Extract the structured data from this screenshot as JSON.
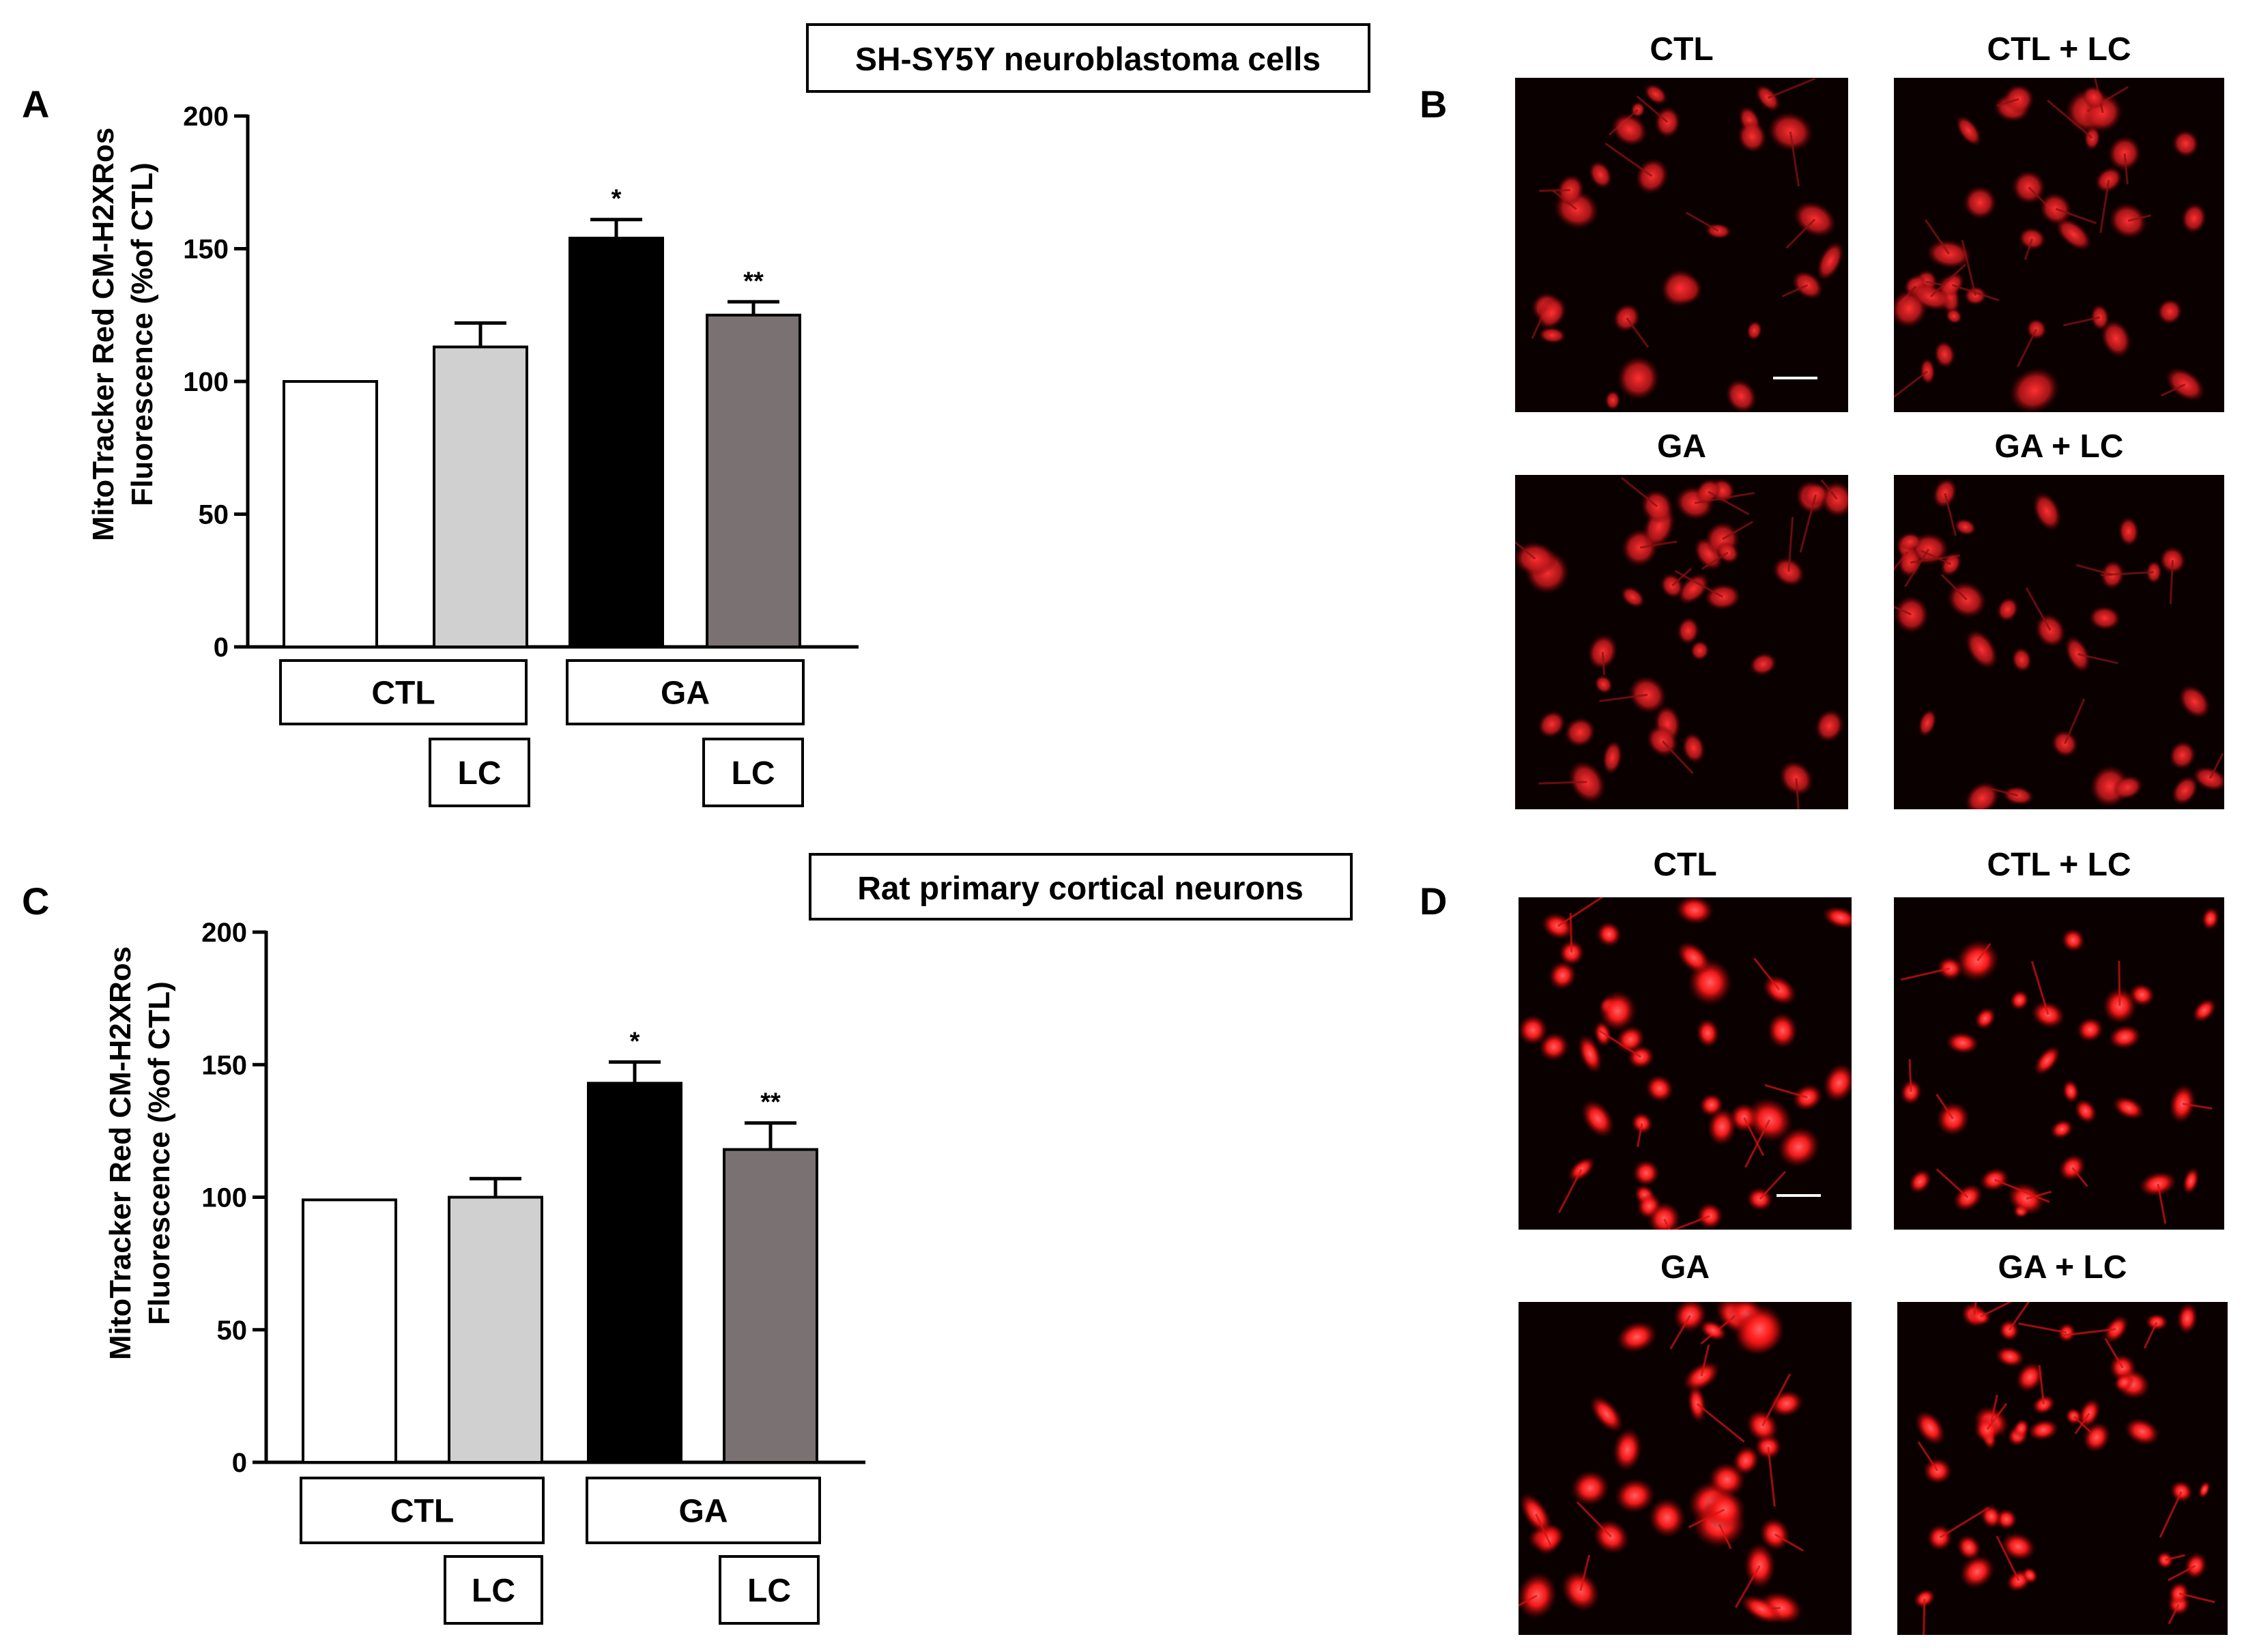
{
  "panels": {
    "A": "A",
    "B": "B",
    "C": "C",
    "D": "D"
  },
  "colors": {
    "CTL": "#ffffff",
    "CTL_LC": "#d0d0d0",
    "GA": "#000000",
    "GA_LC": "#7a7272",
    "fluor_dim": "#c0181c",
    "fluor_bright": "#ff2020",
    "background_dark": "#0a0000"
  },
  "chart_data": [
    {
      "panel": "A",
      "type": "bar",
      "title": "SH-SY5Y neuroblastoma cells",
      "ylabel_line1": "MitoTracker Red CM-H2XRos",
      "ylabel_line2": "Fluorescence (%of CTL)",
      "ylim": [
        0,
        200
      ],
      "yticks": [
        0,
        50,
        100,
        150,
        200
      ],
      "ytick_labels": [
        "0",
        "50",
        "100",
        "150",
        "200"
      ],
      "categories": [
        "CTL",
        "CTL + LC",
        "GA",
        "GA + LC"
      ],
      "values": [
        100,
        113,
        154,
        125
      ],
      "errors": [
        0,
        9,
        7,
        5
      ],
      "significance": [
        "",
        "",
        "*",
        "**"
      ],
      "group_labels": [
        "CTL",
        "GA"
      ],
      "lc_labels": [
        "LC",
        "LC"
      ]
    },
    {
      "panel": "C",
      "type": "bar",
      "title": "Rat primary cortical neurons",
      "ylabel_line1": "MitoTracker Red CM-H2XRos",
      "ylabel_line2": "Fluorescence (%of CTL)",
      "ylim": [
        0,
        200
      ],
      "yticks": [
        0,
        50,
        100,
        150,
        200
      ],
      "ytick_labels": [
        "0",
        "50",
        "100",
        "150",
        "200"
      ],
      "categories": [
        "CTL",
        "CTL + LC",
        "GA",
        "GA + LC"
      ],
      "values": [
        99,
        100,
        143,
        118
      ],
      "errors": [
        0,
        7,
        8,
        10
      ],
      "significance": [
        "",
        "",
        "*",
        "**"
      ],
      "group_labels": [
        "CTL",
        "GA"
      ],
      "lc_labels": [
        "LC",
        "LC"
      ]
    }
  ],
  "micrographs": {
    "B": [
      "CTL",
      "CTL + LC",
      "GA",
      "GA + LC"
    ],
    "D": [
      "CTL",
      "CTL + LC",
      "GA",
      "GA + LC"
    ]
  }
}
